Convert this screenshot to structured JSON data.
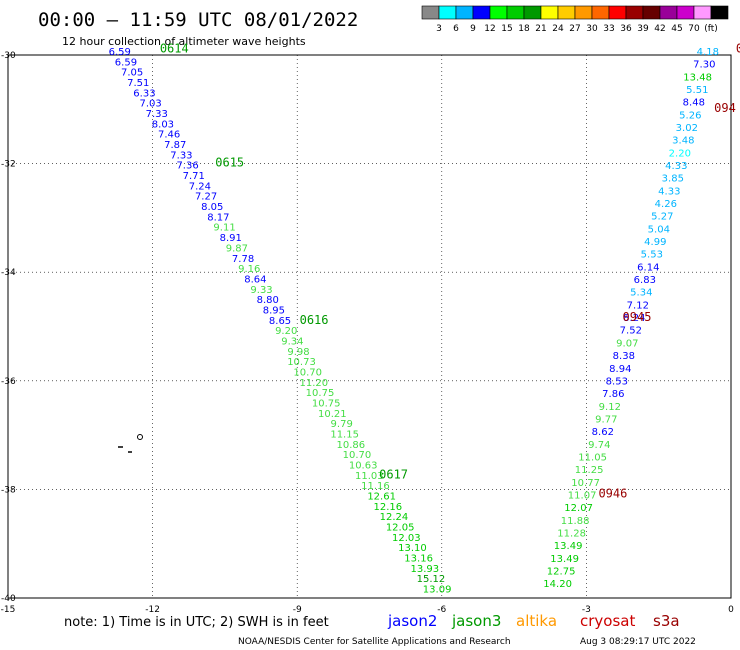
{
  "header": {
    "title": "00:00 – 11:59 UTC 08/01/2022",
    "subtitle": "12 hour collection of altimeter wave heights"
  },
  "legend": {
    "colors": [
      "#888888",
      "#00ffff",
      "#00b4ff",
      "#0000ff",
      "#00ff00",
      "#00cc00",
      "#009900",
      "#ffff00",
      "#ffcc00",
      "#ff9900",
      "#ff6600",
      "#ff0000",
      "#990000",
      "#660000",
      "#990099",
      "#cc00cc",
      "#ff99ff",
      "#000000"
    ],
    "labels": [
      "3",
      "6",
      "9",
      "12",
      "15",
      "18",
      "21",
      "24",
      "27",
      "30",
      "33",
      "36",
      "39",
      "42",
      "45",
      "70",
      "(ft)"
    ]
  },
  "chart_data": {
    "type": "scatter",
    "xlim": [
      -15,
      0
    ],
    "ylim": [
      -40,
      -30
    ],
    "xticks": [
      "-15",
      "-12",
      "-9",
      "-6",
      "-3",
      "0"
    ],
    "yticks": [
      "-30",
      "-32",
      "-34",
      "-36",
      "-38",
      "-40"
    ],
    "grid": true,
    "units": "ft",
    "tracks": [
      {
        "mission": "jason3",
        "start": [
          -12.45,
          -30
        ],
        "end": [
          -5.8,
          -39.9
        ],
        "time_labels": [
          {
            "text": "0614",
            "x": -11.85,
            "y": -29.95
          },
          {
            "text": "0615",
            "x": -10.7,
            "y": -32.05
          },
          {
            "text": "0616",
            "x": -8.95,
            "y": -34.95
          },
          {
            "text": "0617",
            "x": -7.3,
            "y": -37.8
          }
        ],
        "values": [
          "6.59",
          "6.59",
          "7.05",
          "7.51",
          "6.33",
          "7.03",
          "7.33",
          "8.03",
          "7.46",
          "7.87",
          "7.33",
          "7.36",
          "7.71",
          "7.24",
          "7.27",
          "8.05",
          "8.17",
          "9.11",
          "8.91",
          "9.87",
          "7.78",
          "9.16",
          "8.64",
          "9.33",
          "8.80",
          "8.95",
          "8.65",
          "9.20",
          "9.34",
          "9.98",
          "10.73",
          "10.70",
          "11.20",
          "10.75",
          "10.75",
          "10.21",
          "9.79",
          "11.15",
          "10.86",
          "10.70",
          "10.63",
          "11.03",
          "11.16",
          "12.61",
          "12.16",
          "12.24",
          "12.05",
          "12.03",
          "13.10",
          "13.16",
          "13.93",
          "15.12",
          "13.09"
        ]
      },
      {
        "mission": "cryosat",
        "start": [
          -0.25,
          -30
        ],
        "end": [
          -3.3,
          -39.8
        ],
        "time_labels": [
          {
            "text": "0945",
            "x": -2.25,
            "y": -34.9
          },
          {
            "text": "0946",
            "x": -2.75,
            "y": -38.15
          }
        ],
        "values": [
          "4.18",
          "7.30",
          "13.48",
          "5.51",
          "8.48",
          "5.26",
          "3.02",
          "3.48",
          "2.20",
          "4.33",
          "3.85",
          "4.33",
          "4.26",
          "5.27",
          "5.04",
          "4.99",
          "5.53",
          "6.14",
          "6.83",
          "5.34",
          "7.12",
          "8.24",
          "7.52",
          "9.07",
          "8.38",
          "8.94",
          "8.53",
          "7.86",
          "9.12",
          "9.77",
          "8.62",
          "9.74",
          "11.05",
          "11.25",
          "10.77",
          "11.07",
          "12.07",
          "11.88",
          "11.28",
          "13.49",
          "13.49",
          "12.75",
          "14.20"
        ]
      },
      {
        "mission": "cryosat",
        "start": [
          0.2,
          -30
        ],
        "end": [
          0.2,
          -31
        ],
        "time_labels": [
          {
            "text": "0",
            "x": 0.1,
            "y": -29.95
          },
          {
            "text": "094",
            "x": -0.35,
            "y": -31.05
          }
        ],
        "values": []
      }
    ]
  },
  "footer": {
    "note": "note: 1) Time is in UTC; 2) SWH is in feet",
    "missions": [
      {
        "name": "jason2",
        "color": "#0000ff"
      },
      {
        "name": "jason3",
        "color": "#009900"
      },
      {
        "name": "altika",
        "color": "#ff9900"
      },
      {
        "name": "cryosat",
        "color": "#cc0000"
      },
      {
        "name": "s3a",
        "color": "#990000"
      }
    ],
    "credit": "NOAA/NESDIS Center for Satellite Applications and Research",
    "generated": "Aug  3 08:29:17 UTC 2022"
  }
}
